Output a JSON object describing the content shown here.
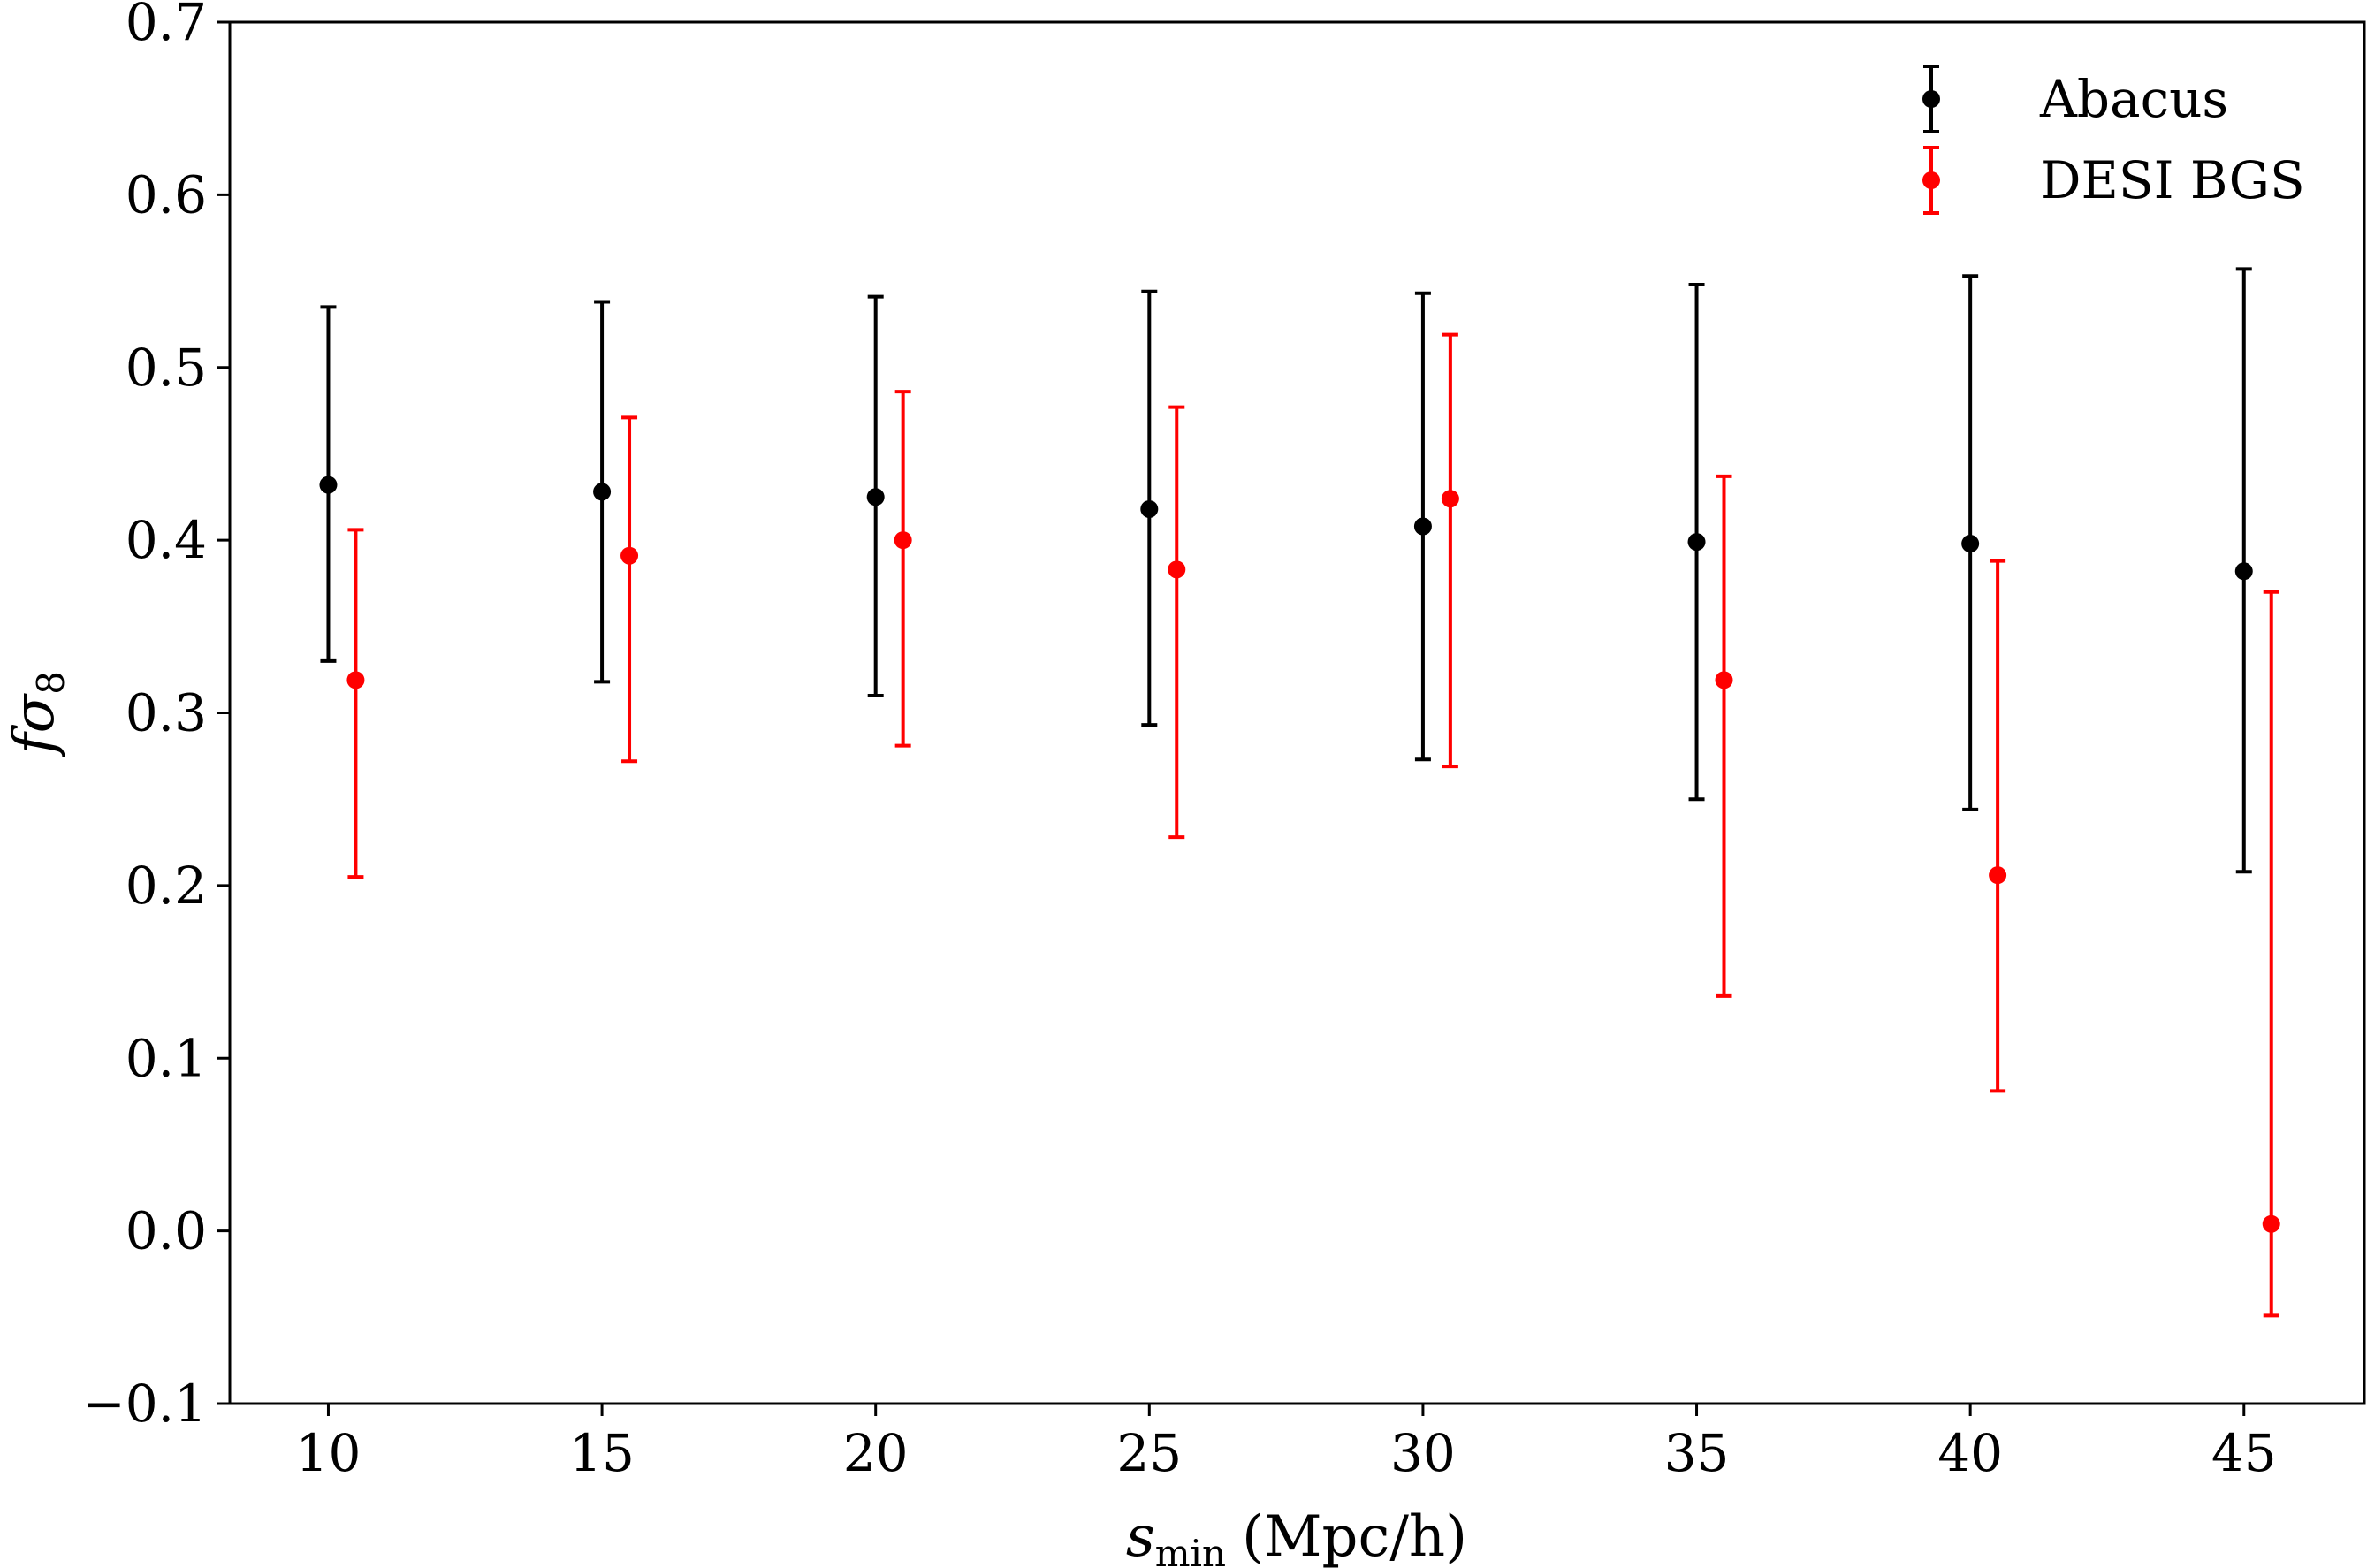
{
  "chart_data": {
    "type": "scatter",
    "xlabel": {
      "symbol": "s",
      "subscript": "min",
      "unit": "(Mpc/h)"
    },
    "ylabel": {
      "symbol": "fσ",
      "subscript": "8"
    },
    "xlim": [
      8.2,
      47.2
    ],
    "ylim": [
      -0.1,
      0.7
    ],
    "xticks": [
      10,
      15,
      20,
      25,
      30,
      35,
      40,
      45
    ],
    "yticks": [
      -0.1,
      0.0,
      0.1,
      0.2,
      0.3,
      0.4,
      0.5,
      0.6,
      0.7
    ],
    "xtick_labels": [
      "10",
      "15",
      "20",
      "25",
      "30",
      "35",
      "40",
      "45"
    ],
    "ytick_labels": [
      "−0.1",
      "0.0",
      "0.1",
      "0.2",
      "0.3",
      "0.4",
      "0.5",
      "0.6",
      "0.7"
    ],
    "grid": false,
    "legend_position": "top-right",
    "series": [
      {
        "name": "Abacus",
        "color": "#000000",
        "x": [
          10,
          15,
          20,
          25,
          30,
          35,
          40,
          45
        ],
        "y": [
          0.432,
          0.428,
          0.425,
          0.418,
          0.408,
          0.399,
          0.398,
          0.382
        ],
        "y_low": [
          0.33,
          0.318,
          0.31,
          0.293,
          0.273,
          0.25,
          0.244,
          0.208
        ],
        "y_high": [
          0.535,
          0.538,
          0.541,
          0.544,
          0.543,
          0.548,
          0.553,
          0.557
        ]
      },
      {
        "name": "DESI BGS",
        "color": "#ff0000",
        "x": [
          10.5,
          15.5,
          20.5,
          25.5,
          30.5,
          35.5,
          40.5,
          45.5
        ],
        "y": [
          0.319,
          0.391,
          0.4,
          0.383,
          0.424,
          0.319,
          0.206,
          0.004
        ],
        "y_low": [
          0.205,
          0.272,
          0.281,
          0.228,
          0.269,
          0.136,
          0.081,
          -0.049
        ],
        "y_high": [
          0.406,
          0.471,
          0.486,
          0.477,
          0.519,
          0.437,
          0.388,
          0.37
        ]
      }
    ]
  }
}
